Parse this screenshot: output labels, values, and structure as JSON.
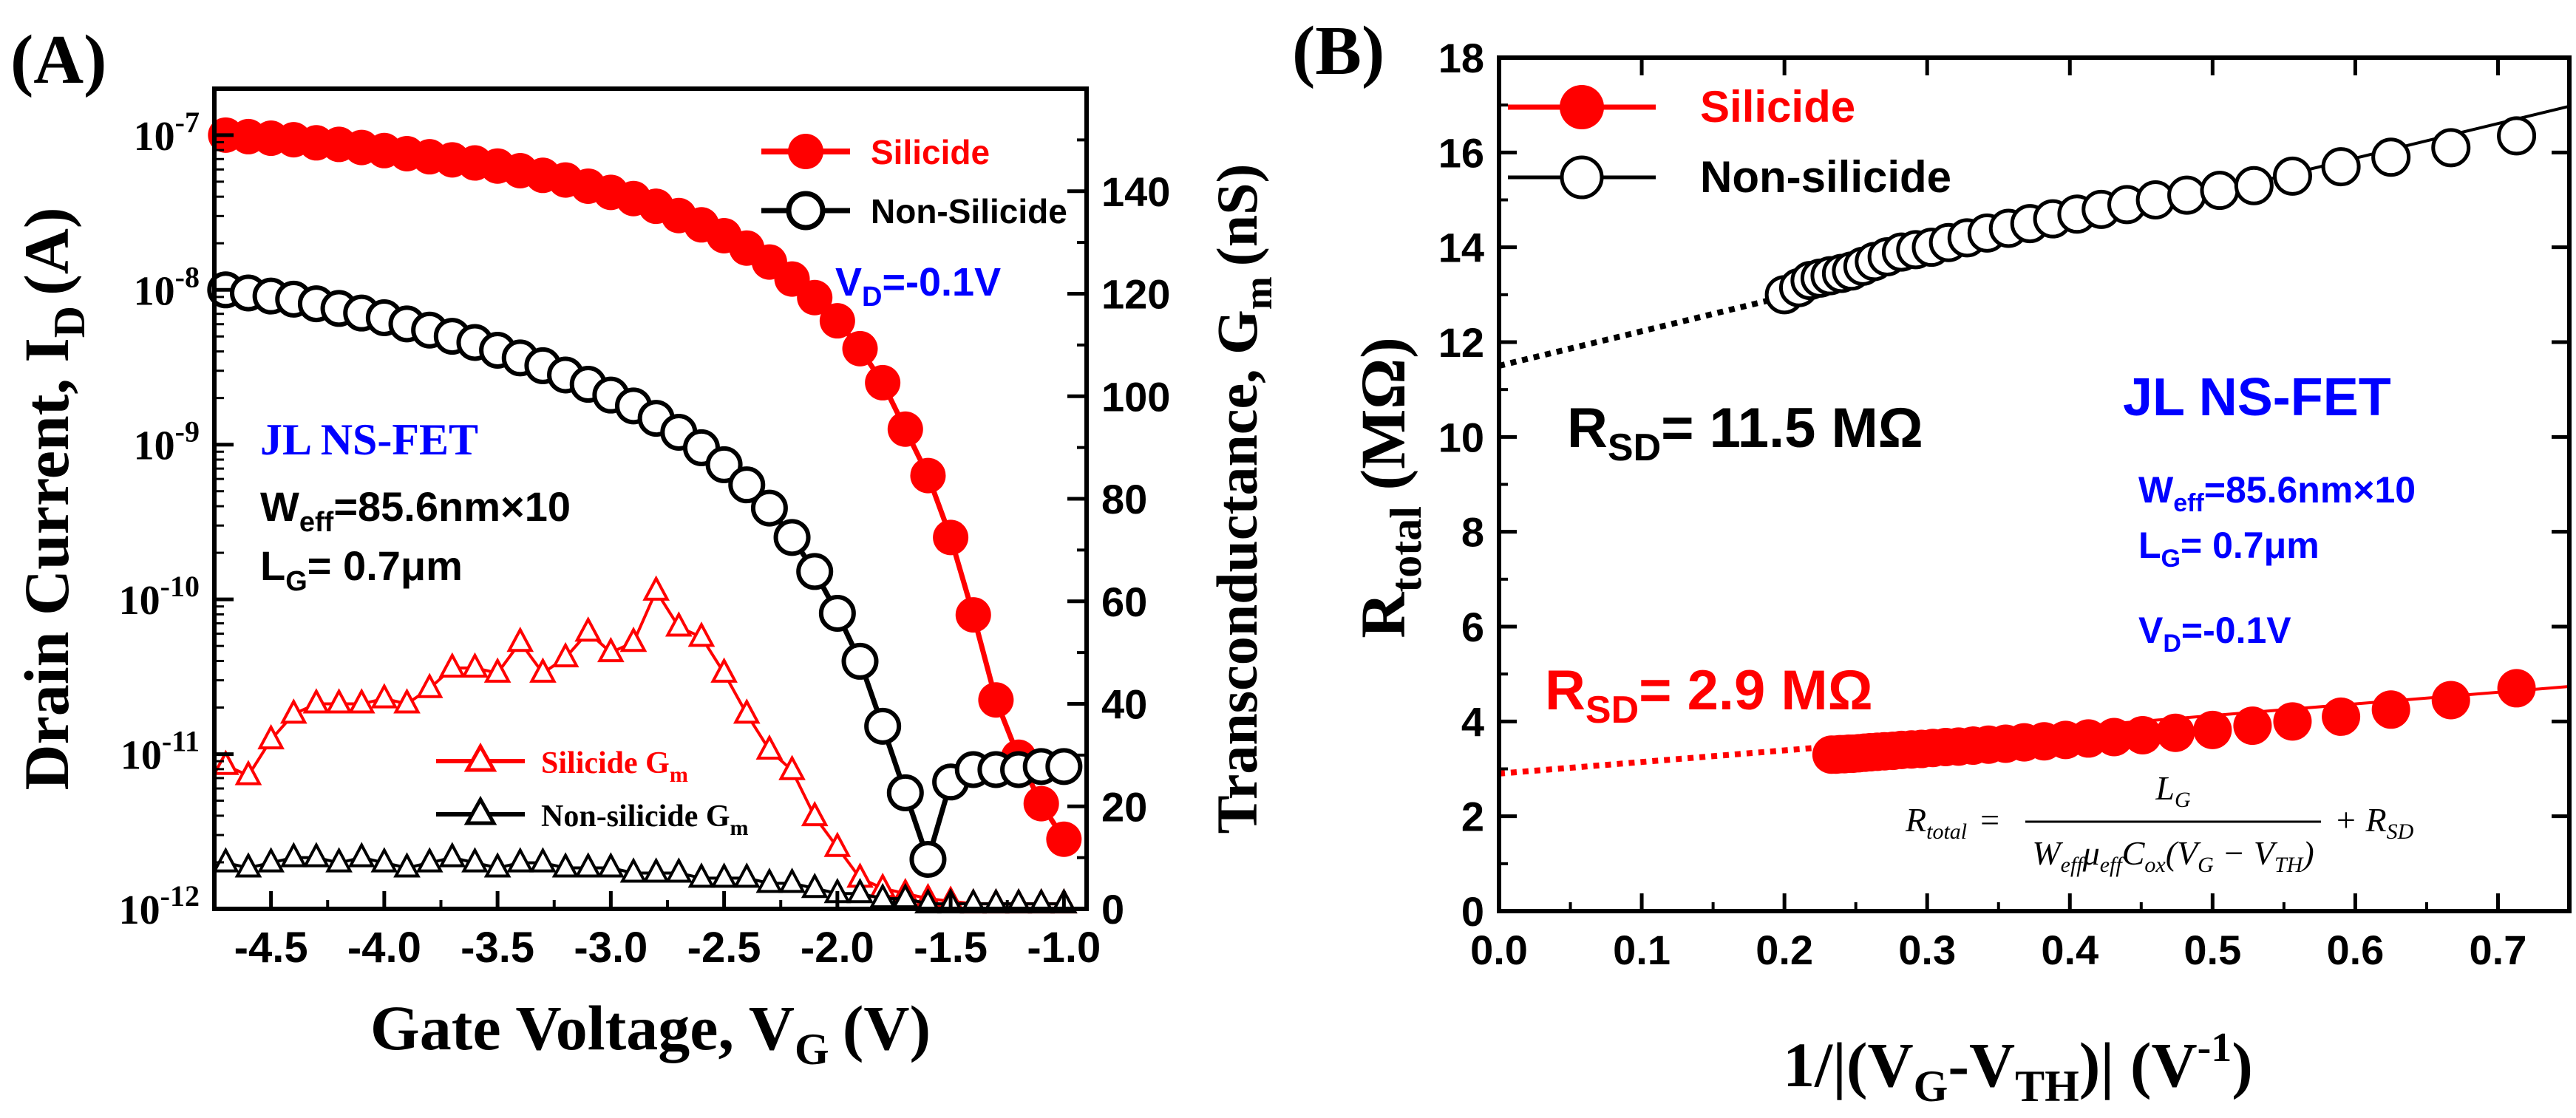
{
  "chart_data": [
    {
      "panel_label": "(A)",
      "type": "scatter",
      "title": "",
      "xlabel": "Gate Voltage, V",
      "xlabel_sub": "G",
      "xlabel_unit": "(V)",
      "ylabel": "Drain Current, I",
      "ylabel_sub": "D",
      "ylabel_unit": "(A)",
      "y2label": "Transconductance, G",
      "y2label_sub": "m",
      "y2label_unit": "(nS)",
      "xlim": [
        -4.75,
        -0.9
      ],
      "ylim_log10": [
        -12,
        -6.7
      ],
      "y2lim": [
        0,
        160
      ],
      "x_ticks": [
        -4.5,
        -4.0,
        -3.5,
        -3.0,
        -2.5,
        -2.0,
        -1.5,
        -1.0
      ],
      "x_tick_labels": [
        "-4.5",
        "-4.0",
        "-3.5",
        "-3.0",
        "-2.5",
        "-2.0",
        "-1.5",
        "-1.0"
      ],
      "y_ticks_log10": [
        -12,
        -11,
        -10,
        -9,
        -8,
        -7
      ],
      "y_tick_labels": [
        {
          "base": "10",
          "exp": "-12"
        },
        {
          "base": "10",
          "exp": "-11"
        },
        {
          "base": "10",
          "exp": "-10"
        },
        {
          "base": "10",
          "exp": "-9"
        },
        {
          "base": "10",
          "exp": "-8"
        },
        {
          "base": "10",
          "exp": "-7"
        }
      ],
      "y2_ticks": [
        0,
        20,
        40,
        60,
        80,
        100,
        120,
        140
      ],
      "y2_tick_labels": [
        "0",
        "20",
        "40",
        "60",
        "80",
        "100",
        "120",
        "140"
      ],
      "series": [
        {
          "name": "Silicide",
          "axis": "left",
          "color": "#ff0000",
          "marker": "circle-filled",
          "x": [
            -4.7,
            -4.6,
            -4.5,
            -4.4,
            -4.3,
            -4.2,
            -4.1,
            -4.0,
            -3.9,
            -3.8,
            -3.7,
            -3.6,
            -3.5,
            -3.4,
            -3.3,
            -3.2,
            -3.1,
            -3.0,
            -2.9,
            -2.8,
            -2.7,
            -2.6,
            -2.5,
            -2.4,
            -2.3,
            -2.2,
            -2.1,
            -2.0,
            -1.9,
            -1.8,
            -1.7,
            -1.6,
            -1.5,
            -1.4,
            -1.3,
            -1.2,
            -1.1,
            -1.0
          ],
          "log10_values": [
            -7.0,
            -7.01,
            -7.02,
            -7.03,
            -7.05,
            -7.06,
            -7.08,
            -7.1,
            -7.12,
            -7.14,
            -7.16,
            -7.18,
            -7.2,
            -7.23,
            -7.26,
            -7.29,
            -7.33,
            -7.37,
            -7.41,
            -7.46,
            -7.52,
            -7.58,
            -7.65,
            -7.73,
            -7.82,
            -7.93,
            -8.05,
            -8.2,
            -8.38,
            -8.6,
            -8.9,
            -9.2,
            -9.6,
            -10.1,
            -10.65,
            -11.02,
            -11.32,
            -11.55
          ]
        },
        {
          "name": "Non-Silicide",
          "axis": "left",
          "color": "#000000",
          "marker": "circle-open",
          "x": [
            -4.7,
            -4.6,
            -4.5,
            -4.4,
            -4.3,
            -4.2,
            -4.1,
            -4.0,
            -3.9,
            -3.8,
            -3.7,
            -3.6,
            -3.5,
            -3.4,
            -3.3,
            -3.2,
            -3.1,
            -3.0,
            -2.9,
            -2.8,
            -2.7,
            -2.6,
            -2.5,
            -2.4,
            -2.3,
            -2.2,
            -2.1,
            -2.0,
            -1.9,
            -1.8,
            -1.7,
            -1.6,
            -1.5,
            -1.4,
            -1.3,
            -1.2,
            -1.1,
            -1.0
          ],
          "log10_values": [
            -8.0,
            -8.02,
            -8.04,
            -8.06,
            -8.09,
            -8.12,
            -8.15,
            -8.18,
            -8.22,
            -8.26,
            -8.3,
            -8.34,
            -8.39,
            -8.44,
            -8.49,
            -8.55,
            -8.61,
            -8.68,
            -8.75,
            -8.83,
            -8.92,
            -9.02,
            -9.13,
            -9.26,
            -9.41,
            -9.6,
            -9.82,
            -10.09,
            -10.4,
            -10.82,
            -11.25,
            -11.68,
            -11.18,
            -11.1,
            -11.1,
            -11.1,
            -11.08,
            -11.08
          ]
        },
        {
          "name": "Silicide G",
          "name_sub": "m",
          "axis": "right",
          "color": "#ff0000",
          "marker": "triangle-open",
          "x": [
            -4.7,
            -4.6,
            -4.5,
            -4.4,
            -4.3,
            -4.2,
            -4.1,
            -4.0,
            -3.9,
            -3.8,
            -3.7,
            -3.6,
            -3.5,
            -3.4,
            -3.3,
            -3.2,
            -3.1,
            -3.0,
            -2.9,
            -2.8,
            -2.7,
            -2.6,
            -2.5,
            -2.4,
            -2.3,
            -2.2,
            -2.1,
            -2.0,
            -1.9,
            -1.8,
            -1.7,
            -1.6,
            -1.5,
            -1.4,
            -1.3,
            -1.2,
            -1.1,
            -1.0
          ],
          "values": [
            28,
            26,
            33,
            38,
            40,
            40,
            40,
            41,
            40,
            43,
            47,
            47,
            46,
            52,
            46,
            49,
            54,
            50,
            52,
            62,
            55,
            53,
            46,
            38,
            31,
            27,
            18,
            12,
            6,
            4,
            3,
            2,
            1.5,
            1,
            1,
            1,
            1,
            1
          ]
        },
        {
          "name": "Non-silicide G",
          "name_sub": "m",
          "axis": "right",
          "color": "#000000",
          "marker": "triangle-open",
          "x": [
            -4.7,
            -4.6,
            -4.5,
            -4.4,
            -4.3,
            -4.2,
            -4.1,
            -4.0,
            -3.9,
            -3.8,
            -3.7,
            -3.6,
            -3.5,
            -3.4,
            -3.3,
            -3.2,
            -3.1,
            -3.0,
            -2.9,
            -2.8,
            -2.7,
            -2.6,
            -2.5,
            -2.4,
            -2.3,
            -2.2,
            -2.1,
            -2.0,
            -1.9,
            -1.8,
            -1.7,
            -1.6,
            -1.5,
            -1.4,
            -1.3,
            -1.2,
            -1.1,
            -1.0
          ],
          "values": [
            9,
            8,
            9,
            10,
            10,
            9,
            10,
            9,
            8,
            9,
            10,
            9,
            8,
            9,
            9,
            8,
            8,
            8,
            7,
            7,
            7,
            6,
            6,
            6,
            5,
            5,
            4,
            3,
            3,
            2,
            2,
            1,
            1,
            1,
            1,
            1,
            1,
            1
          ]
        }
      ],
      "annotations": {
        "vd": {
          "main": "V",
          "sub": "D",
          "rest": "=-0.1V"
        },
        "device": "JL NS-FET",
        "weff": {
          "main": "W",
          "sub": "eff",
          "rest": "=85.6nm×10"
        },
        "lg": {
          "main": "L",
          "sub": "G",
          "rest": "= 0.7μm"
        }
      },
      "legend_position": "top-right"
    },
    {
      "panel_label": "(B)",
      "type": "scatter",
      "title": "",
      "xlabel_parts": {
        "a": "1/|(V",
        "a_sub": "G",
        "b": "-V",
        "b_sub": "TH",
        "c": ")| (V",
        "c_sup": "-1",
        "d": ")"
      },
      "ylabel": {
        "main": "R",
        "sub": "total",
        "rest": " (MΩ)"
      },
      "xlim": [
        0.0,
        0.75
      ],
      "ylim": [
        0,
        18
      ],
      "x_ticks": [
        0.0,
        0.1,
        0.2,
        0.3,
        0.4,
        0.5,
        0.6,
        0.7
      ],
      "x_tick_labels": [
        "0.0",
        "0.1",
        "0.2",
        "0.3",
        "0.4",
        "0.5",
        "0.6",
        "0.7"
      ],
      "y_ticks": [
        0,
        2,
        4,
        6,
        8,
        10,
        12,
        14,
        16,
        18
      ],
      "y_tick_labels": [
        "0",
        "2",
        "4",
        "6",
        "8",
        "10",
        "12",
        "14",
        "16",
        "18"
      ],
      "series": [
        {
          "name": "Silicide",
          "color": "#ff0000",
          "marker": "circle-filled",
          "x": [
            0.233,
            0.236,
            0.239,
            0.242,
            0.245,
            0.248,
            0.252,
            0.256,
            0.26,
            0.265,
            0.27,
            0.276,
            0.282,
            0.289,
            0.296,
            0.304,
            0.313,
            0.322,
            0.332,
            0.343,
            0.355,
            0.368,
            0.382,
            0.397,
            0.413,
            0.431,
            0.451,
            0.474,
            0.5,
            0.528,
            0.556,
            0.59,
            0.625,
            0.667,
            0.713
          ],
          "values": [
            3.3,
            3.3,
            3.31,
            3.31,
            3.32,
            3.32,
            3.33,
            3.34,
            3.35,
            3.36,
            3.37,
            3.38,
            3.4,
            3.41,
            3.42,
            3.44,
            3.46,
            3.47,
            3.49,
            3.51,
            3.53,
            3.56,
            3.58,
            3.61,
            3.64,
            3.67,
            3.71,
            3.76,
            3.82,
            3.91,
            4.0,
            4.1,
            4.25,
            4.45,
            4.7
          ]
        },
        {
          "name": "Non-silicide",
          "color": "#000000",
          "marker": "circle-open",
          "x": [
            0.2,
            0.21,
            0.218,
            0.225,
            0.232,
            0.24,
            0.247,
            0.255,
            0.263,
            0.272,
            0.282,
            0.292,
            0.303,
            0.315,
            0.328,
            0.342,
            0.357,
            0.372,
            0.388,
            0.405,
            0.422,
            0.44,
            0.46,
            0.482,
            0.505,
            0.529,
            0.556,
            0.59,
            0.625,
            0.667,
            0.713
          ],
          "values": [
            13.0,
            13.15,
            13.3,
            13.35,
            13.4,
            13.45,
            13.5,
            13.6,
            13.7,
            13.8,
            13.9,
            13.95,
            14.0,
            14.1,
            14.2,
            14.3,
            14.4,
            14.5,
            14.6,
            14.7,
            14.8,
            14.9,
            15.0,
            15.1,
            15.2,
            15.3,
            15.5,
            15.7,
            15.9,
            16.1,
            16.35
          ]
        }
      ],
      "fit_lines": [
        {
          "name": "Silicide fit",
          "color": "#ff0000",
          "intercept": 2.9,
          "slope": 2.45,
          "x_start": 0.0,
          "dotted_until": 0.233,
          "x_end": 0.75
        },
        {
          "name": "Non-silicide fit",
          "color": "#000000",
          "intercept": 11.5,
          "slope": 7.3,
          "x_start": 0.0,
          "dotted_until": 0.2,
          "x_end": 0.75
        }
      ],
      "annotations": {
        "rsd_silicide": {
          "main": "R",
          "sub": "SD",
          "rest": "= 2.9 MΩ"
        },
        "rsd_nonsilicide": {
          "main": "R",
          "sub": "SD",
          "rest": "= 11.5 MΩ"
        },
        "device": "JL NS-FET",
        "weff": {
          "main": "W",
          "sub": "eff",
          "rest": "=85.6nm×10"
        },
        "lg": {
          "main": "L",
          "sub": "G",
          "rest": "= 0.7μm"
        },
        "vd": {
          "main": "V",
          "sub": "D",
          "rest": "=-0.1V"
        },
        "formula": {
          "lhs": "R",
          "lhs_sub": "total",
          "eq": "=",
          "num": "L",
          "num_sub": "G",
          "d1": "W",
          "d1_sub": "eff",
          "d2": "μ",
          "d2_sub": "eff",
          "d3": "C",
          "d3_sub": "ox",
          "d4": "(V",
          "d4_sub": "G",
          "d5": " − V",
          "d5_sub": "TH",
          "d6": ")",
          "plus": "+ R",
          "plus_sub": "SD"
        }
      },
      "legend_position": "top-left"
    }
  ]
}
